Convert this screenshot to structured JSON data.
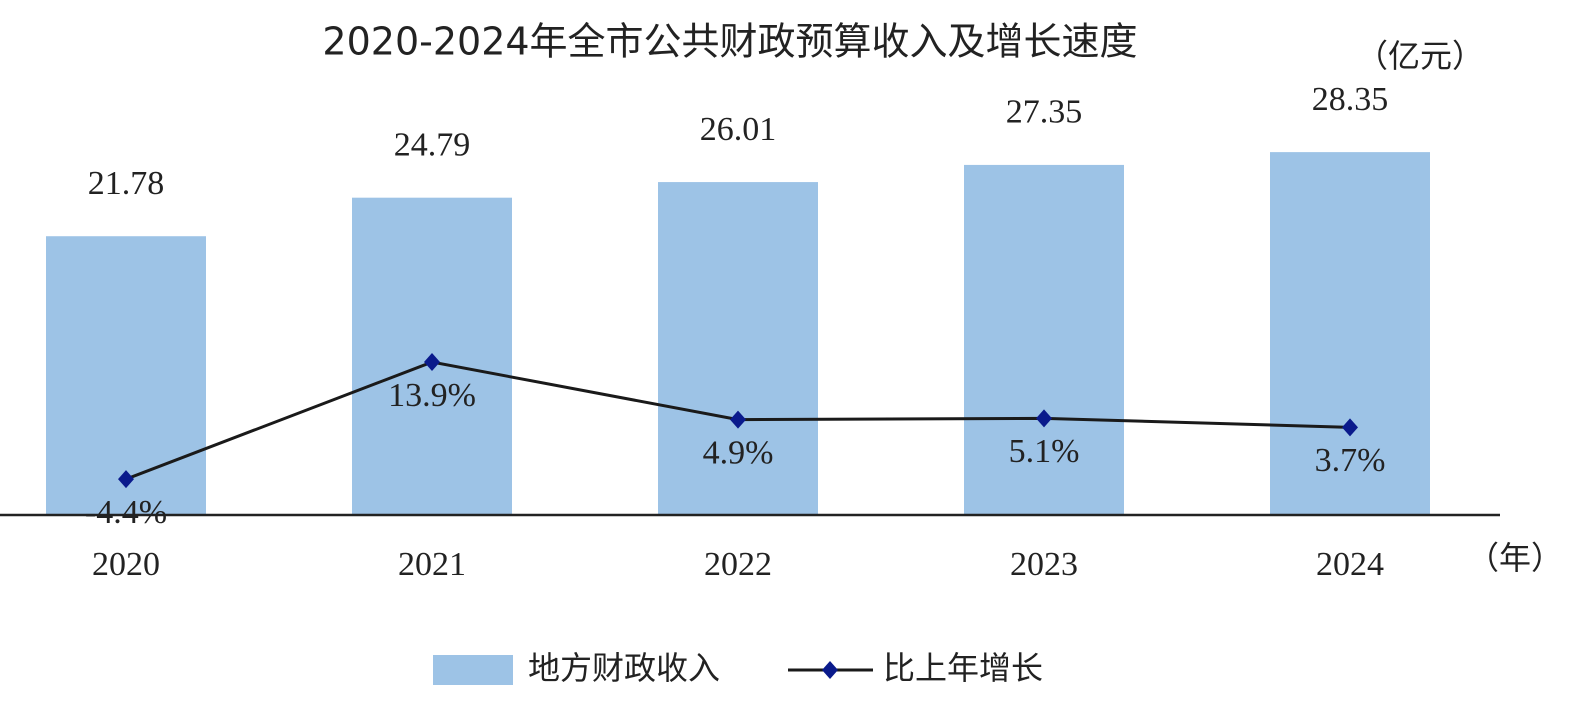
{
  "chart_data": {
    "type": "bar-line",
    "title": "2020-2024年全市公共财政预算收入及增长速度",
    "y_unit": "（亿元）",
    "x_unit": "（年）",
    "categories": [
      "2020",
      "2021",
      "2022",
      "2023",
      "2024"
    ],
    "series": [
      {
        "name": "地方财政收入",
        "type": "bar",
        "color": "#9dc3e6",
        "values": [
          21.78,
          24.79,
          26.01,
          27.35,
          28.35
        ]
      },
      {
        "name": "比上年增长",
        "type": "line",
        "axis": "y2",
        "color": "#1a1a1a",
        "marker_color": "#0a1a8c",
        "values": [
          -4.4,
          13.9,
          4.9,
          5.1,
          3.7
        ],
        "value_labels": [
          "-4.4%",
          "13.9%",
          "4.9%",
          "5.1%",
          "3.7%"
        ]
      }
    ],
    "ylim": [
      0,
      40
    ],
    "y2lim": [
      -10,
      70
    ],
    "legend": "bottom"
  }
}
